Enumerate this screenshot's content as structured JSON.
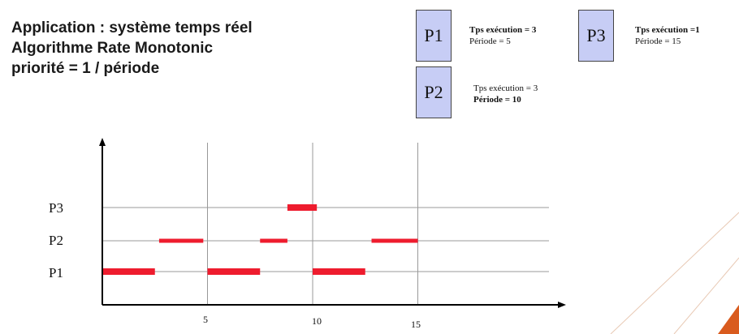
{
  "title_lines": [
    "Application : système temps réel",
    "Algorithme Rate Monotonic",
    "priorité = 1 / période"
  ],
  "processes": [
    {
      "name": "P1",
      "exec_label": "Tps exécution = 3",
      "period_label": "Période = 5"
    },
    {
      "name": "P2",
      "exec_label": "Tps exécution = 3",
      "period_label": "Période = 10"
    },
    {
      "name": "P3",
      "exec_label": "Tps exécution =1",
      "period_label": "Période = 15"
    }
  ],
  "chart_data": {
    "type": "gantt",
    "rows": [
      "P1",
      "P2",
      "P3"
    ],
    "x_ticks": [
      "5",
      "10",
      "15"
    ],
    "xlim": [
      0,
      21
    ],
    "segments": [
      {
        "row": "P1",
        "start": 0,
        "end": 2.5
      },
      {
        "row": "P2",
        "start": 2.7,
        "end": 4.8
      },
      {
        "row": "P1",
        "start": 5,
        "end": 7.5
      },
      {
        "row": "P2",
        "start": 7.5,
        "end": 8.8
      },
      {
        "row": "P3",
        "start": 8.8,
        "end": 10.2
      },
      {
        "row": "P1",
        "start": 10,
        "end": 12.5
      },
      {
        "row": "P2",
        "start": 12.8,
        "end": 15
      }
    ],
    "bar_color": "#ee1c2e",
    "gridline_color": "#999999"
  }
}
